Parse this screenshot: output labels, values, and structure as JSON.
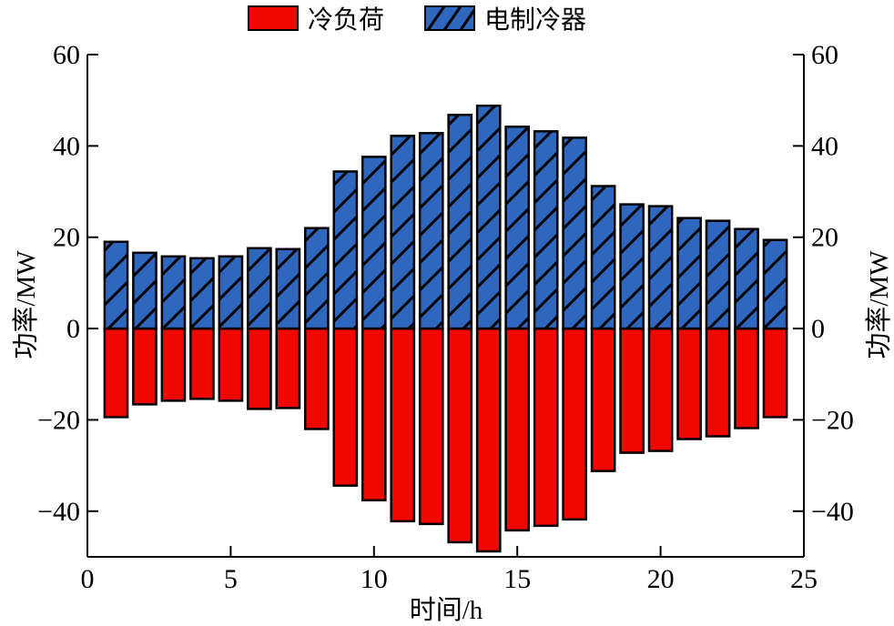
{
  "chart_data": {
    "type": "bar",
    "title": "",
    "xlabel": "时间/h",
    "ylabel_left": "功率/MW",
    "ylabel_right": "功率/MW",
    "xlim": [
      0,
      25
    ],
    "ylim": [
      -50,
      60
    ],
    "xticks": [
      0,
      5,
      10,
      15,
      20,
      25
    ],
    "yticks": [
      -40,
      -20,
      0,
      20,
      40,
      60
    ],
    "grid": false,
    "legend_position": "top-center",
    "x": [
      1,
      2,
      3,
      4,
      5,
      6,
      7,
      8,
      9,
      10,
      11,
      12,
      13,
      14,
      15,
      16,
      17,
      18,
      19,
      20,
      21,
      22,
      23,
      24
    ],
    "series": [
      {
        "name": "冷负荷",
        "color": "#f00800",
        "pattern": "solid",
        "values": [
          -19.4,
          -16.6,
          -15.8,
          -15.4,
          -15.8,
          -17.6,
          -17.4,
          -22.0,
          -34.4,
          -37.6,
          -42.2,
          -42.8,
          -46.8,
          -48.8,
          -44.2,
          -43.2,
          -41.8,
          -31.2,
          -27.2,
          -26.8,
          -24.2,
          -23.6,
          -21.8,
          -19.4
        ]
      },
      {
        "name": "电制冷器",
        "color": "#2f67bf",
        "pattern": "diagonal-hatch",
        "values": [
          19.0,
          16.6,
          15.8,
          15.4,
          15.8,
          17.6,
          17.4,
          22.0,
          34.4,
          37.6,
          42.2,
          42.8,
          46.8,
          48.8,
          44.2,
          43.2,
          41.8,
          31.2,
          27.2,
          26.8,
          24.2,
          23.6,
          21.8,
          19.4
        ]
      }
    ]
  },
  "legend": {
    "items": [
      {
        "label": "冷负荷",
        "color": "#f00800"
      },
      {
        "label": "电制冷器",
        "color": "#2f67bf"
      }
    ]
  }
}
